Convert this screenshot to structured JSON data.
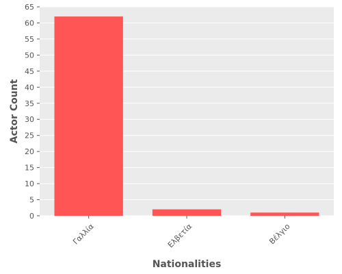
{
  "chart_data": {
    "type": "bar",
    "categories": [
      "Γαλλία",
      "Ελβετία",
      "Βέλγιο"
    ],
    "values": [
      62,
      2,
      1
    ],
    "xlabel": "Nationalities",
    "ylabel": "Actor Count",
    "ylim": [
      0,
      65
    ],
    "yticks": [
      0,
      5,
      10,
      15,
      20,
      25,
      30,
      35,
      40,
      45,
      50,
      55,
      60,
      65
    ],
    "grid": true,
    "bar_color": "#ff5555",
    "plot_background": "#ebebeb",
    "grid_color": "#ffffff"
  }
}
